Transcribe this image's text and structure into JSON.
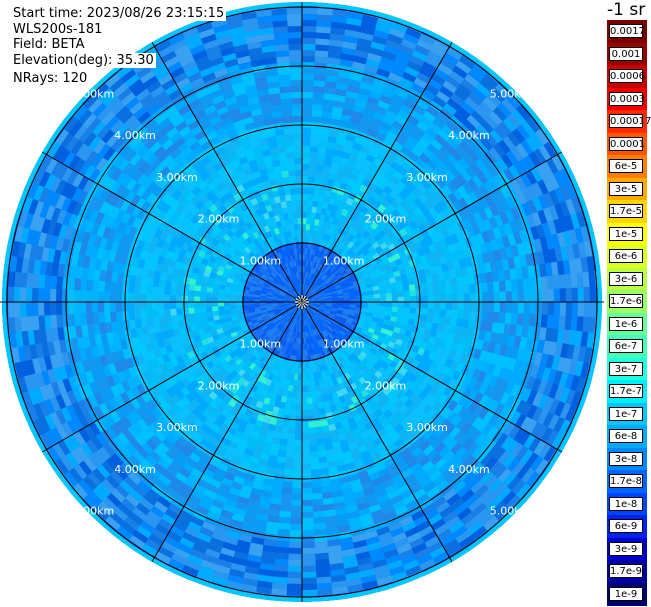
{
  "header": {
    "start_time": "Start time: 2023/08/26 23:15:15",
    "instrument": "WLS200s-181",
    "field": "Field: BETA",
    "elevation": "Elevation(deg): 35.30",
    "nrays": "NRays: 120"
  },
  "colorbar": {
    "unit_label": "-1 sr",
    "labels": [
      "0.0017",
      "0.001",
      "0.0006",
      "0.0003",
      "0.00017",
      "0.0001",
      "6e-5",
      "3e-5",
      "1.7e-5",
      "1e-5",
      "6e-6",
      "3e-6",
      "1.7e-6",
      "1e-6",
      "6e-7",
      "3e-7",
      "1.7e-7",
      "1e-7",
      "6e-8",
      "3e-8",
      "1.7e-8",
      "1e-8",
      "6e-9",
      "3e-9",
      "1.7e-9",
      "1e-9"
    ],
    "colors": [
      "#7a0000",
      "#990000",
      "#c40000",
      "#ee0000",
      "#ff2a00",
      "#ff5500",
      "#ff8000",
      "#ffaa00",
      "#ffd400",
      "#ffff00",
      "#ddff22",
      "#bbff44",
      "#99ff66",
      "#66ff99",
      "#44ffbb",
      "#22ffdd",
      "#00eeff",
      "#00c8ff",
      "#00aaff",
      "#0088ff",
      "#0066ff",
      "#0044ff",
      "#0022ee",
      "#0000cc",
      "#0000a0",
      "#000070"
    ]
  },
  "ppi": {
    "range_rings_km": [
      "1.00km",
      "2.00km",
      "3.00km",
      "4.00km",
      "5.00km"
    ]
  }
}
